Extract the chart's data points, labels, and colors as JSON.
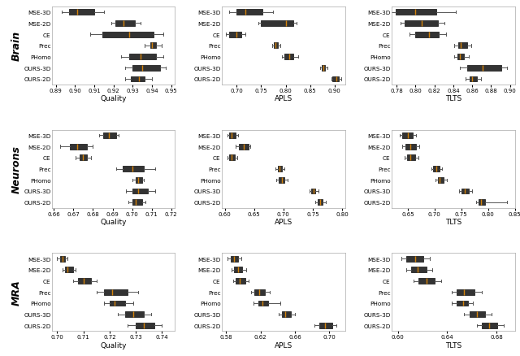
{
  "row_labels": [
    "Brain",
    "Neurons",
    "MRA"
  ],
  "col_labels": [
    "Quality",
    "APLS",
    "TLTS"
  ],
  "methods": [
    "MSE-3D",
    "MSE-2D",
    "CE",
    "Prec",
    "PHomo",
    "OURS-3D",
    "OURS-2D"
  ],
  "box_color": "#4e96cc",
  "median_color": "#d4820a",
  "data": {
    "Brain": {
      "Quality": {
        "MSE-3D": {
          "q1": 0.897,
          "q2": 0.901,
          "q3": 0.91,
          "whislo": 0.893,
          "whishi": 0.915
        },
        "MSE-2D": {
          "q1": 0.921,
          "q2": 0.925,
          "q3": 0.931,
          "whislo": 0.919,
          "whishi": 0.934
        },
        "CE": {
          "q1": 0.914,
          "q2": 0.928,
          "q3": 0.941,
          "whislo": 0.908,
          "whishi": 0.946
        },
        "Prec": {
          "q1": 0.939,
          "q2": 0.94,
          "q3": 0.942,
          "whislo": 0.936,
          "whishi": 0.945
        },
        "PHomo": {
          "q1": 0.928,
          "q2": 0.934,
          "q3": 0.942,
          "whislo": 0.924,
          "whishi": 0.946
        },
        "OURS-3D": {
          "q1": 0.93,
          "q2": 0.935,
          "q3": 0.944,
          "whislo": 0.926,
          "whishi": 0.947
        },
        "OURS-2D": {
          "q1": 0.929,
          "q2": 0.933,
          "q3": 0.936,
          "whislo": 0.926,
          "whishi": 0.94
        }
      },
      "APLS": {
        "MSE-3D": {
          "q1": 0.7,
          "q2": 0.718,
          "q3": 0.752,
          "whislo": 0.684,
          "whishi": 0.774
        },
        "MSE-2D": {
          "q1": 0.75,
          "q2": 0.8,
          "q3": 0.816,
          "whislo": 0.744,
          "whishi": 0.823
        },
        "CE": {
          "q1": 0.684,
          "q2": 0.7,
          "q3": 0.71,
          "whislo": 0.678,
          "whishi": 0.718
        },
        "Prec": {
          "q1": 0.776,
          "q2": 0.779,
          "q3": 0.784,
          "whislo": 0.773,
          "whishi": 0.79
        },
        "PHomo": {
          "q1": 0.798,
          "q2": 0.808,
          "q3": 0.816,
          "whislo": 0.793,
          "whishi": 0.826
        },
        "OURS-3D": {
          "q1": 0.874,
          "q2": 0.877,
          "q3": 0.881,
          "whislo": 0.871,
          "whishi": 0.885
        },
        "OURS-2D": {
          "q1": 0.896,
          "q2": 0.904,
          "q3": 0.909,
          "whislo": 0.893,
          "whishi": 0.914
        }
      },
      "TLTS": {
        "MSE-3D": {
          "q1": 0.779,
          "q2": 0.8,
          "q3": 0.822,
          "whislo": 0.774,
          "whishi": 0.843
        },
        "MSE-2D": {
          "q1": 0.789,
          "q2": 0.807,
          "q3": 0.824,
          "whislo": 0.784,
          "whishi": 0.831
        },
        "CE": {
          "q1": 0.8,
          "q2": 0.814,
          "q3": 0.825,
          "whislo": 0.794,
          "whishi": 0.832
        },
        "Prec": {
          "q1": 0.845,
          "q2": 0.848,
          "q3": 0.855,
          "whislo": 0.841,
          "whishi": 0.859
        },
        "PHomo": {
          "q1": 0.844,
          "q2": 0.847,
          "q3": 0.851,
          "whislo": 0.841,
          "whishi": 0.856
        },
        "OURS-3D": {
          "q1": 0.855,
          "q2": 0.871,
          "q3": 0.891,
          "whislo": 0.847,
          "whishi": 0.897
        },
        "OURS-2D": {
          "q1": 0.857,
          "q2": 0.86,
          "q3": 0.865,
          "whislo": 0.853,
          "whishi": 0.869
        }
      }
    },
    "Neurons": {
      "Quality": {
        "MSE-3D": {
          "q1": 0.685,
          "q2": 0.688,
          "q3": 0.692,
          "whislo": 0.683,
          "whishi": 0.693
        },
        "MSE-2D": {
          "q1": 0.668,
          "q2": 0.672,
          "q3": 0.677,
          "whislo": 0.663,
          "whishi": 0.68
        },
        "CE": {
          "q1": 0.673,
          "q2": 0.675,
          "q3": 0.677,
          "whislo": 0.671,
          "whishi": 0.679
        },
        "Prec": {
          "q1": 0.695,
          "q2": 0.7,
          "q3": 0.706,
          "whislo": 0.692,
          "whishi": 0.712
        },
        "PHomo": {
          "q1": 0.702,
          "q2": 0.703,
          "q3": 0.705,
          "whislo": 0.7,
          "whishi": 0.706
        },
        "OURS-3D": {
          "q1": 0.7,
          "q2": 0.703,
          "q3": 0.708,
          "whislo": 0.697,
          "whishi": 0.712
        },
        "OURS-2D": {
          "q1": 0.7,
          "q2": 0.702,
          "q3": 0.705,
          "whislo": 0.698,
          "whishi": 0.707
        }
      },
      "APLS": {
        "MSE-3D": {
          "q1": 0.608,
          "q2": 0.612,
          "q3": 0.618,
          "whislo": 0.604,
          "whishi": 0.622
        },
        "MSE-2D": {
          "q1": 0.624,
          "q2": 0.632,
          "q3": 0.64,
          "whislo": 0.619,
          "whishi": 0.644
        },
        "CE": {
          "q1": 0.608,
          "q2": 0.612,
          "q3": 0.617,
          "whislo": 0.605,
          "whishi": 0.621
        },
        "Prec": {
          "q1": 0.69,
          "q2": 0.694,
          "q3": 0.698,
          "whislo": 0.687,
          "whishi": 0.702
        },
        "PHomo": {
          "q1": 0.692,
          "q2": 0.697,
          "q3": 0.702,
          "whislo": 0.688,
          "whishi": 0.707
        },
        "OURS-3D": {
          "q1": 0.748,
          "q2": 0.751,
          "q3": 0.755,
          "whislo": 0.744,
          "whishi": 0.76
        },
        "OURS-2D": {
          "q1": 0.758,
          "q2": 0.762,
          "q3": 0.767,
          "whislo": 0.754,
          "whishi": 0.772
        }
      },
      "TLTS": {
        "MSE-3D": {
          "q1": 0.64,
          "q2": 0.65,
          "q3": 0.66,
          "whislo": 0.635,
          "whishi": 0.666
        },
        "MSE-2D": {
          "q1": 0.645,
          "q2": 0.655,
          "q3": 0.665,
          "whislo": 0.639,
          "whishi": 0.671
        },
        "CE": {
          "q1": 0.648,
          "q2": 0.655,
          "q3": 0.664,
          "whislo": 0.644,
          "whishi": 0.67
        },
        "Prec": {
          "q1": 0.698,
          "q2": 0.703,
          "q3": 0.709,
          "whislo": 0.694,
          "whishi": 0.714
        },
        "PHomo": {
          "q1": 0.706,
          "q2": 0.71,
          "q3": 0.717,
          "whislo": 0.702,
          "whishi": 0.723
        },
        "OURS-3D": {
          "q1": 0.75,
          "q2": 0.757,
          "q3": 0.764,
          "whislo": 0.746,
          "whishi": 0.77
        },
        "OURS-2D": {
          "q1": 0.782,
          "q2": 0.787,
          "q3": 0.794,
          "whislo": 0.778,
          "whishi": 0.836
        }
      }
    },
    "MRA": {
      "Quality": {
        "MSE-3D": {
          "q1": 0.701,
          "q2": 0.702,
          "q3": 0.703,
          "whislo": 0.7,
          "whishi": 0.704
        },
        "MSE-2D": {
          "q1": 0.703,
          "q2": 0.704,
          "q3": 0.706,
          "whislo": 0.702,
          "whishi": 0.707
        },
        "CE": {
          "q1": 0.708,
          "q2": 0.71,
          "q3": 0.713,
          "whislo": 0.706,
          "whishi": 0.715
        },
        "Prec": {
          "q1": 0.718,
          "q2": 0.721,
          "q3": 0.727,
          "whislo": 0.715,
          "whishi": 0.731
        },
        "PHomo": {
          "q1": 0.72,
          "q2": 0.722,
          "q3": 0.726,
          "whislo": 0.718,
          "whishi": 0.729
        },
        "OURS-3D": {
          "q1": 0.726,
          "q2": 0.729,
          "q3": 0.733,
          "whislo": 0.723,
          "whishi": 0.736
        },
        "OURS-2D": {
          "q1": 0.73,
          "q2": 0.733,
          "q3": 0.737,
          "whislo": 0.727,
          "whishi": 0.74
        }
      },
      "APLS": {
        "MSE-3D": {
          "q1": 0.585,
          "q2": 0.589,
          "q3": 0.594,
          "whislo": 0.582,
          "whishi": 0.598
        },
        "MSE-2D": {
          "q1": 0.589,
          "q2": 0.594,
          "q3": 0.599,
          "whislo": 0.586,
          "whishi": 0.603
        },
        "CE": {
          "q1": 0.591,
          "q2": 0.596,
          "q3": 0.602,
          "whislo": 0.588,
          "whishi": 0.606
        },
        "Prec": {
          "q1": 0.613,
          "q2": 0.618,
          "q3": 0.625,
          "whislo": 0.609,
          "whishi": 0.631
        },
        "PHomo": {
          "q1": 0.617,
          "q2": 0.622,
          "q3": 0.629,
          "whislo": 0.612,
          "whishi": 0.643
        },
        "OURS-3D": {
          "q1": 0.645,
          "q2": 0.649,
          "q3": 0.655,
          "whislo": 0.641,
          "whishi": 0.66
        },
        "OURS-2D": {
          "q1": 0.688,
          "q2": 0.695,
          "q3": 0.703,
          "whislo": 0.683,
          "whishi": 0.708
        }
      },
      "TLTS": {
        "MSE-3D": {
          "q1": 0.607,
          "q2": 0.614,
          "q3": 0.621,
          "whislo": 0.603,
          "whishi": 0.626
        },
        "MSE-2D": {
          "q1": 0.611,
          "q2": 0.616,
          "q3": 0.623,
          "whislo": 0.607,
          "whishi": 0.628
        },
        "CE": {
          "q1": 0.617,
          "q2": 0.623,
          "q3": 0.63,
          "whislo": 0.613,
          "whishi": 0.635
        },
        "Prec": {
          "q1": 0.648,
          "q2": 0.654,
          "q3": 0.662,
          "whislo": 0.644,
          "whishi": 0.668
        },
        "PHomo": {
          "q1": 0.648,
          "q2": 0.653,
          "q3": 0.657,
          "whislo": 0.644,
          "whishi": 0.661
        },
        "OURS-3D": {
          "q1": 0.658,
          "q2": 0.664,
          "q3": 0.671,
          "whislo": 0.654,
          "whishi": 0.676
        },
        "OURS-2D": {
          "q1": 0.668,
          "q2": 0.674,
          "q3": 0.681,
          "whislo": 0.664,
          "whishi": 0.686
        }
      }
    }
  },
  "xlims": {
    "Brain": {
      "Quality": [
        0.888,
        0.952
      ],
      "APLS": [
        0.67,
        0.921
      ],
      "TLTS": [
        0.775,
        0.905
      ]
    },
    "Neurons": {
      "Quality": [
        0.659,
        0.722
      ],
      "APLS": [
        0.595,
        0.805
      ],
      "TLTS": [
        0.62,
        0.85
      ]
    },
    "MRA": {
      "Quality": [
        0.698,
        0.745
      ],
      "APLS": [
        0.575,
        0.718
      ],
      "TLTS": [
        0.595,
        0.695
      ]
    }
  },
  "xticks": {
    "Brain": {
      "Quality": [
        0.89,
        0.9,
        0.91,
        0.92,
        0.93,
        0.94,
        0.95
      ],
      "APLS": [
        0.7,
        0.75,
        0.8,
        0.85,
        0.9
      ],
      "TLTS": [
        0.78,
        0.8,
        0.82,
        0.84,
        0.86,
        0.88,
        0.9
      ]
    },
    "Neurons": {
      "Quality": [
        0.66,
        0.67,
        0.68,
        0.69,
        0.7,
        0.71,
        0.72
      ],
      "APLS": [
        0.6,
        0.65,
        0.7,
        0.75,
        0.8
      ],
      "TLTS": [
        0.65,
        0.7,
        0.75,
        0.8,
        0.85
      ]
    },
    "MRA": {
      "Quality": [
        0.7,
        0.71,
        0.72,
        0.73,
        0.74
      ],
      "APLS": [
        0.58,
        0.62,
        0.66,
        0.7
      ],
      "TLTS": [
        0.6,
        0.64,
        0.68
      ]
    }
  }
}
